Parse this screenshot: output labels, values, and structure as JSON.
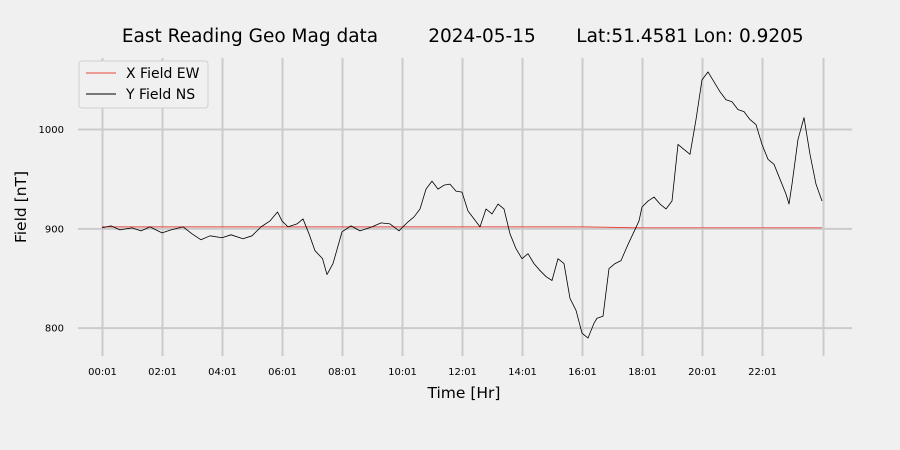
{
  "chart_data": {
    "type": "line",
    "title": {
      "main": "East Reading Geo Mag data",
      "date": "2024-05-15",
      "location": "Lat:51.4581  Lon: 0.9205"
    },
    "xlabel": "Time  [Hr]",
    "ylabel": "Field  [nT]",
    "xlim": [
      -0.8,
      25
    ],
    "ylim": [
      772,
      1072
    ],
    "x_ticks": [
      {
        "value": 0.017,
        "label": "00:01"
      },
      {
        "value": 2.017,
        "label": "02:01"
      },
      {
        "value": 4.017,
        "label": "04:01"
      },
      {
        "value": 6.017,
        "label": "06:01"
      },
      {
        "value": 8.017,
        "label": "08:01"
      },
      {
        "value": 10.017,
        "label": "10:01"
      },
      {
        "value": 12.017,
        "label": "12:01"
      },
      {
        "value": 14.017,
        "label": "14:01"
      },
      {
        "value": 16.017,
        "label": "16:01"
      },
      {
        "value": 18.017,
        "label": "18:01"
      },
      {
        "value": 20.017,
        "label": "20:01"
      },
      {
        "value": 22.017,
        "label": "22:01"
      },
      {
        "value": 24.05,
        "label": ""
      }
    ],
    "y_ticks": [
      {
        "value": 800,
        "label": "800"
      },
      {
        "value": 900,
        "label": "900"
      },
      {
        "value": 1000,
        "label": "1000"
      }
    ],
    "grid": true,
    "legend_position": "top-left",
    "colors": {
      "background": "#f0f0f0",
      "grid": "#cbcbcb",
      "x_series": "#e8453c",
      "y_series": "#000000"
    },
    "series": [
      {
        "name": "X Field EW",
        "x": [
          0.0,
          6.0,
          12.0,
          16.0,
          18.0,
          20.0,
          24.0
        ],
        "y": [
          902,
          902,
          902,
          902,
          901,
          901,
          901
        ]
      },
      {
        "name": "Y Field NS",
        "x": [
          0.0,
          0.3,
          0.6,
          1.0,
          1.3,
          1.6,
          2.0,
          2.3,
          2.7,
          3.0,
          3.3,
          3.6,
          4.0,
          4.3,
          4.7,
          5.0,
          5.3,
          5.6,
          5.85,
          6.0,
          6.2,
          6.5,
          6.7,
          6.9,
          7.1,
          7.35,
          7.5,
          7.7,
          8.0,
          8.3,
          8.6,
          9.0,
          9.3,
          9.6,
          9.9,
          10.2,
          10.4,
          10.6,
          10.8,
          11.0,
          11.2,
          11.4,
          11.6,
          11.8,
          12.0,
          12.2,
          12.4,
          12.6,
          12.8,
          13.0,
          13.2,
          13.4,
          13.6,
          13.8,
          14.0,
          14.2,
          14.4,
          14.6,
          14.8,
          15.0,
          15.2,
          15.4,
          15.6,
          15.8,
          16.0,
          16.2,
          16.4,
          16.5,
          16.7,
          16.9,
          17.1,
          17.3,
          17.5,
          17.7,
          17.9,
          18.0,
          18.2,
          18.4,
          18.6,
          18.8,
          19.0,
          19.2,
          19.4,
          19.6,
          19.8,
          20.0,
          20.2,
          20.4,
          20.6,
          20.8,
          21.0,
          21.2,
          21.4,
          21.6,
          21.8,
          22.0,
          22.2,
          22.4,
          22.6,
          22.8,
          22.9,
          23.0,
          23.2,
          23.4,
          23.6,
          23.8,
          24.0
        ],
        "y": [
          901,
          903,
          899,
          901,
          898,
          902,
          896,
          899,
          902,
          895,
          889,
          893,
          891,
          894,
          890,
          893,
          902,
          908,
          917,
          908,
          902,
          905,
          910,
          895,
          878,
          870,
          854,
          865,
          897,
          903,
          898,
          902,
          906,
          905,
          898,
          907,
          912,
          920,
          940,
          948,
          940,
          944,
          945,
          938,
          937,
          918,
          910,
          902,
          920,
          915,
          925,
          920,
          895,
          880,
          870,
          875,
          865,
          858,
          852,
          848,
          870,
          865,
          830,
          818,
          795,
          790,
          805,
          810,
          812,
          860,
          865,
          868,
          882,
          895,
          908,
          922,
          928,
          932,
          925,
          920,
          928,
          985,
          980,
          975,
          1010,
          1050,
          1058,
          1048,
          1038,
          1030,
          1028,
          1020,
          1018,
          1010,
          1005,
          985,
          970,
          965,
          950,
          935,
          925,
          945,
          990,
          1012,
          975,
          945,
          928
        ]
      }
    ]
  }
}
